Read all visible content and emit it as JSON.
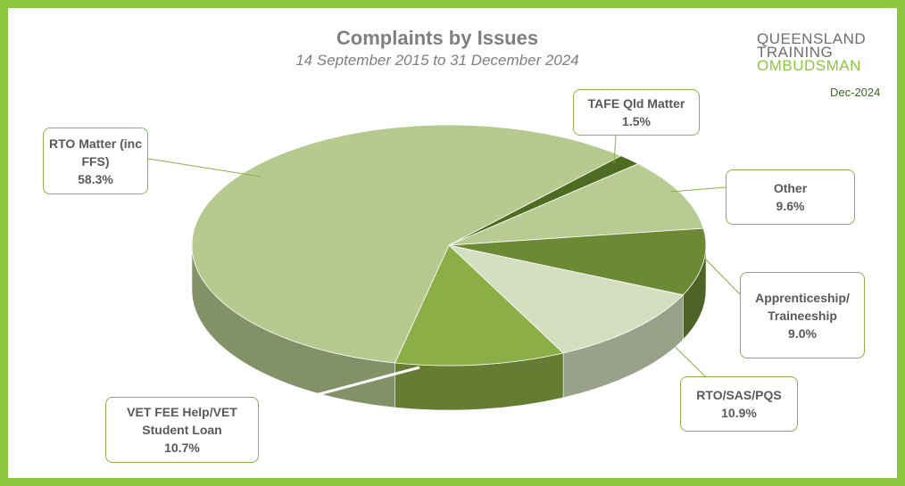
{
  "chart_data": {
    "type": "pie",
    "title": "Complaints by Issues",
    "subtitle": "14 September 2015 to 31 December 2024",
    "categories": [
      "TAFE Qld Matter",
      "Other",
      "Apprenticeship/ Traineeship",
      "RTO/SAS/PQS",
      "VET FEE Help/VET Student Loan",
      "RTO Matter (inc FFS)"
    ],
    "values": [
      1.5,
      9.6,
      9.0,
      10.9,
      10.7,
      58.3
    ],
    "value_labels": [
      "1.5%",
      "9.6%",
      "9.0%",
      "10.9%",
      "10.7%",
      "58.3%"
    ],
    "colors": [
      "#4e6b22",
      "#b8cb92",
      "#6c8935",
      "#d4dfbf",
      "#8cae46",
      "#b6c98e"
    ]
  },
  "logo": {
    "lines": [
      "QUEENSLAND",
      "TRAINING",
      "OMBUDSMAN"
    ],
    "date": "Dec-2024"
  }
}
